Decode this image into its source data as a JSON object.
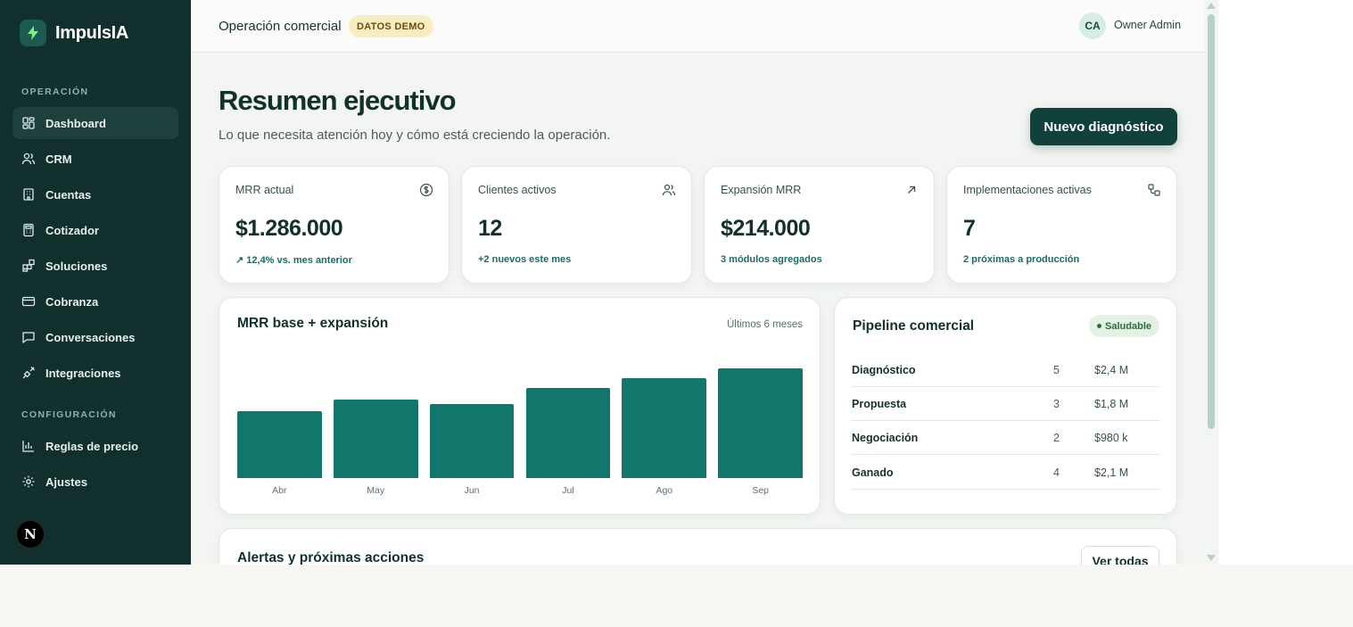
{
  "brand": {
    "name": "ImpulsIA",
    "icon": "bolt-icon"
  },
  "sidebar": {
    "sections": [
      {
        "label": "OPERACIÓN"
      },
      {
        "label": "CONFIGURACIÓN"
      }
    ],
    "items": [
      {
        "label": "Dashboard",
        "icon": "dashboard-icon",
        "active": true
      },
      {
        "label": "CRM",
        "icon": "users-icon"
      },
      {
        "label": "Cuentas",
        "icon": "building-icon"
      },
      {
        "label": "Cotizador",
        "icon": "calculator-icon"
      },
      {
        "label": "Soluciones",
        "icon": "grid-plus-icon"
      },
      {
        "label": "Cobranza",
        "icon": "credit-card-icon"
      },
      {
        "label": "Conversaciones",
        "icon": "chat-icon"
      },
      {
        "label": "Integraciones",
        "icon": "plug-icon"
      },
      {
        "label": "Reglas de precio",
        "icon": "bar-chart-icon"
      },
      {
        "label": "Ajustes",
        "icon": "gear-icon"
      }
    ],
    "footer_badge": "N"
  },
  "topbar": {
    "title": "Operación comercial",
    "badge": "DATOS DEMO",
    "user": {
      "initials": "CA",
      "name": "Owner Admin"
    }
  },
  "page": {
    "title": "Resumen ejecutivo",
    "subtitle": "Lo que necesita atención hoy y cómo está creciendo la operación.",
    "primary_action": "Nuevo diagnóstico"
  },
  "kpis": [
    {
      "label": "MRR actual",
      "value": "$1.286.000",
      "note": "↗ 12,4% vs. mes anterior",
      "icon": "dollar-circle-icon"
    },
    {
      "label": "Clientes activos",
      "value": "12",
      "note": "+2 nuevos este mes",
      "icon": "users-icon"
    },
    {
      "label": "Expansión MRR",
      "value": "$214.000",
      "note": "3 módulos agregados",
      "icon": "arrow-up-right-icon"
    },
    {
      "label": "Implementaciones activas",
      "value": "7",
      "note": "2 próximas a producción",
      "icon": "workflow-icon"
    }
  ],
  "mrr_card": {
    "title": "MRR base + expansión",
    "meta": "Últimos 6 meses"
  },
  "chart_data": {
    "type": "bar",
    "categories": [
      "Abr",
      "May",
      "Jun",
      "Jul",
      "Ago",
      "Sep"
    ],
    "values": [
      75,
      88,
      83,
      101,
      112,
      123
    ],
    "title": "MRR base + expansión",
    "xlabel": "",
    "ylabel": "",
    "ylim": [
      0,
      126
    ],
    "grid": false,
    "color": "#13766c"
  },
  "pipeline": {
    "title": "Pipeline comercial",
    "status": "Saludable",
    "rows": [
      {
        "stage": "Diagnóstico",
        "count": "5",
        "amount": "$2,4 M"
      },
      {
        "stage": "Propuesta",
        "count": "3",
        "amount": "$1,8 M"
      },
      {
        "stage": "Negociación",
        "count": "2",
        "amount": "$980 k"
      },
      {
        "stage": "Ganado",
        "count": "4",
        "amount": "$2,1 M"
      }
    ]
  },
  "alerts": {
    "title": "Alertas y próximas acciones",
    "action": "Ver todas"
  }
}
